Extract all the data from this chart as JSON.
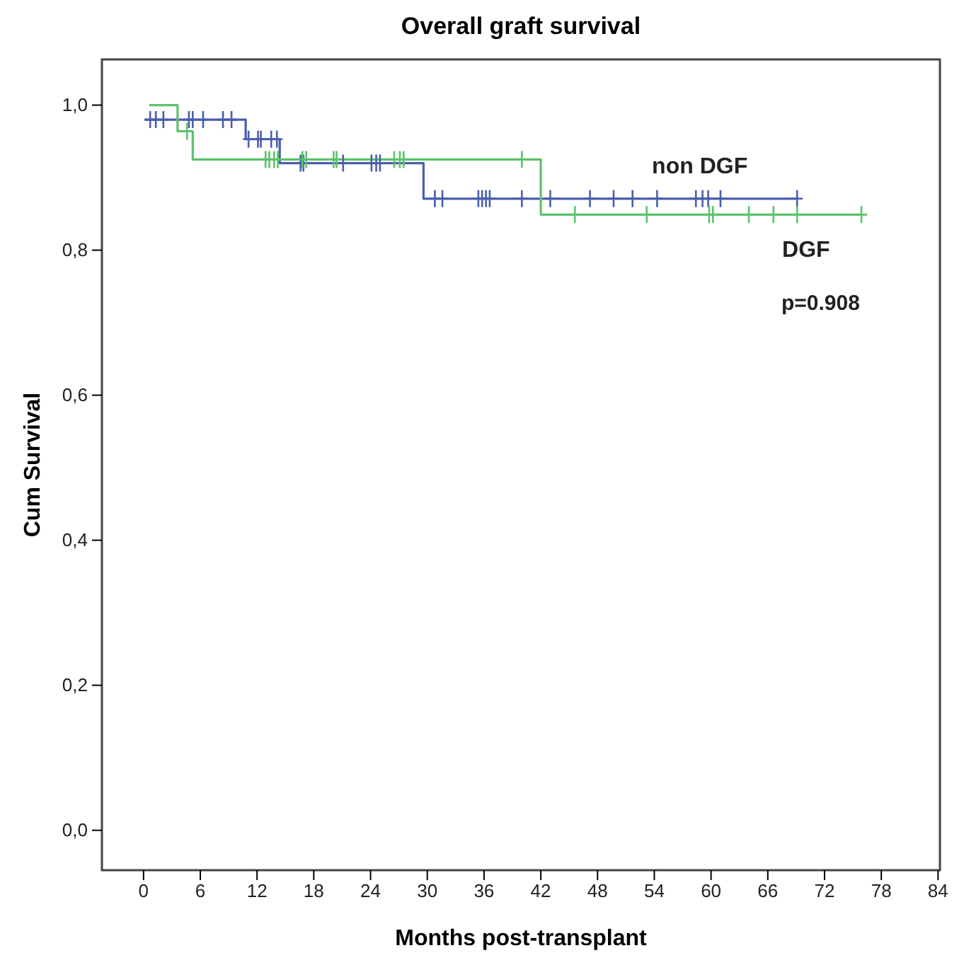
{
  "chart_data": {
    "type": "step",
    "title": "Overall graft survival",
    "xlabel": "Months post-transplant",
    "ylabel": "Cum Survival",
    "xlim": [
      -4.4,
      84.2
    ],
    "ylim": [
      -0.055,
      1.063
    ],
    "xticks": [
      0,
      6,
      12,
      18,
      24,
      30,
      36,
      42,
      48,
      54,
      60,
      66,
      72,
      78,
      84
    ],
    "yticks": [
      {
        "value": 0,
        "label": "0,0"
      },
      {
        "value": 0.2,
        "label": "0,2"
      },
      {
        "value": 0.4,
        "label": "0,4"
      },
      {
        "value": 0.6,
        "label": "0,6"
      },
      {
        "value": 0.8,
        "label": "0,8"
      },
      {
        "value": 1,
        "label": "1,0"
      }
    ],
    "annotations": [
      "p=0.908"
    ],
    "series": [
      {
        "name": "non DGF",
        "color": "#4a5eab",
        "marker": "none",
        "x": [
          0.1,
          10.8,
          14.4,
          29.6,
          69.1
        ],
        "values": [
          0.98,
          0.953,
          0.92,
          0.871,
          0.871
        ]
      },
      {
        "name": "DGF",
        "color": "#5cc26b",
        "marker": "none",
        "x": [
          0.6,
          3.6,
          5.2,
          42.0,
          75.9
        ],
        "values": [
          1.0,
          0.964,
          0.925,
          0.849,
          0.849
        ]
      },
      {
        "type": "scatter",
        "color": "#4a5eab",
        "marker": "cross",
        "x": [
          0.7,
          1.3,
          2.1,
          4.8,
          5.2,
          6.3,
          8.4,
          9.3,
          11.1,
          12.1,
          12.4,
          13.5,
          14.1,
          16.6,
          16.9,
          21.1,
          24.1,
          24.6,
          25.0,
          30.8,
          31.6,
          35.4,
          35.8,
          36.2,
          36.6,
          40.0,
          43.0,
          47.2,
          49.7,
          51.7,
          54.3,
          58.4,
          59.1,
          59.7,
          61.0,
          69.1
        ],
        "values": [
          0.98,
          0.98,
          0.98,
          0.98,
          0.98,
          0.98,
          0.98,
          0.98,
          0.953,
          0.953,
          0.953,
          0.953,
          0.953,
          0.92,
          0.92,
          0.92,
          0.92,
          0.92,
          0.92,
          0.871,
          0.871,
          0.871,
          0.871,
          0.871,
          0.871,
          0.871,
          0.871,
          0.871,
          0.871,
          0.871,
          0.871,
          0.871,
          0.871,
          0.871,
          0.871,
          0.871
        ]
      },
      {
        "type": "scatter",
        "color": "#5cc26b",
        "marker": "cross",
        "x": [
          4.6,
          12.9,
          13.3,
          13.8,
          14.2,
          16.8,
          17.2,
          20.1,
          20.4,
          26.5,
          27.1,
          27.5,
          40.0,
          45.6,
          53.2,
          59.8,
          60.2,
          64.0,
          66.6,
          69.1,
          75.9
        ],
        "values": [
          0.964,
          0.925,
          0.925,
          0.925,
          0.925,
          0.925,
          0.925,
          0.925,
          0.925,
          0.925,
          0.925,
          0.925,
          0.925,
          0.849,
          0.849,
          0.849,
          0.849,
          0.849,
          0.849,
          0.849,
          0.849
        ]
      }
    ]
  }
}
